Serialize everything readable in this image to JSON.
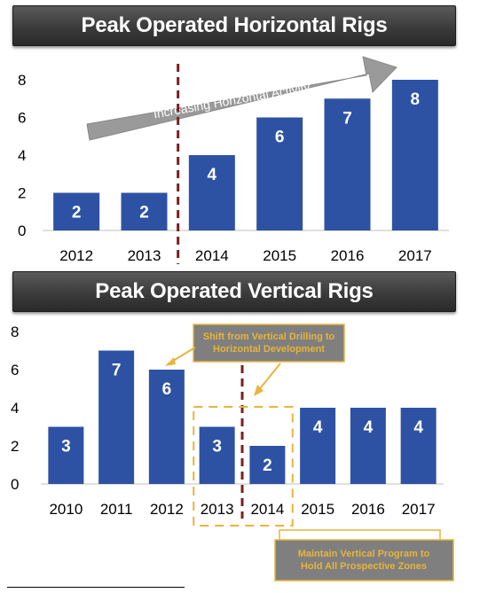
{
  "chart_data": [
    {
      "type": "bar",
      "title": "Peak Operated Horizontal Rigs",
      "categories": [
        "2012",
        "2013",
        "2014",
        "2015",
        "2016",
        "2017"
      ],
      "values": [
        2,
        2,
        4,
        6,
        7,
        8
      ],
      "data_labels": [
        "2",
        "2",
        "4",
        "6",
        "7",
        "8"
      ],
      "y_ticks": [
        "0",
        "2",
        "4",
        "6",
        "8"
      ],
      "ylim": [
        0,
        8
      ],
      "grid": false,
      "bar_color": "#2e52a3",
      "divider_after_category": "2013",
      "annotations": [
        {
          "type": "arrow",
          "text": "Increasing Horizontal Activity"
        }
      ]
    },
    {
      "type": "bar",
      "title": "Peak Operated Vertical Rigs",
      "categories": [
        "2010",
        "2011",
        "2012",
        "2013",
        "2014",
        "2015",
        "2016",
        "2017"
      ],
      "values": [
        3,
        7,
        6,
        3,
        2,
        4,
        4,
        4
      ],
      "data_labels": [
        "3",
        "7",
        "6",
        "3",
        "2",
        "4",
        "4",
        "4"
      ],
      "y_ticks": [
        "0",
        "2",
        "4",
        "6",
        "8"
      ],
      "ylim": [
        0,
        8
      ],
      "grid": false,
      "bar_color": "#2e52a3",
      "divider_after_category": "2013",
      "highlight_categories": [
        "2013",
        "2014"
      ],
      "annotations": [
        {
          "type": "callout",
          "lines": [
            "Shift from Vertical Drilling to",
            "Horizontal Development"
          ]
        },
        {
          "type": "callout",
          "lines": [
            "Maintain Vertical Program to",
            "Hold All Prospective Zones"
          ]
        }
      ]
    }
  ],
  "colors": {
    "bar": "#2e52a3",
    "divider": "#7a1f1f",
    "callout_border": "#e8b43a",
    "callout_fill": "#7f7f7f",
    "arrow_fill": "#9a9a9a"
  }
}
